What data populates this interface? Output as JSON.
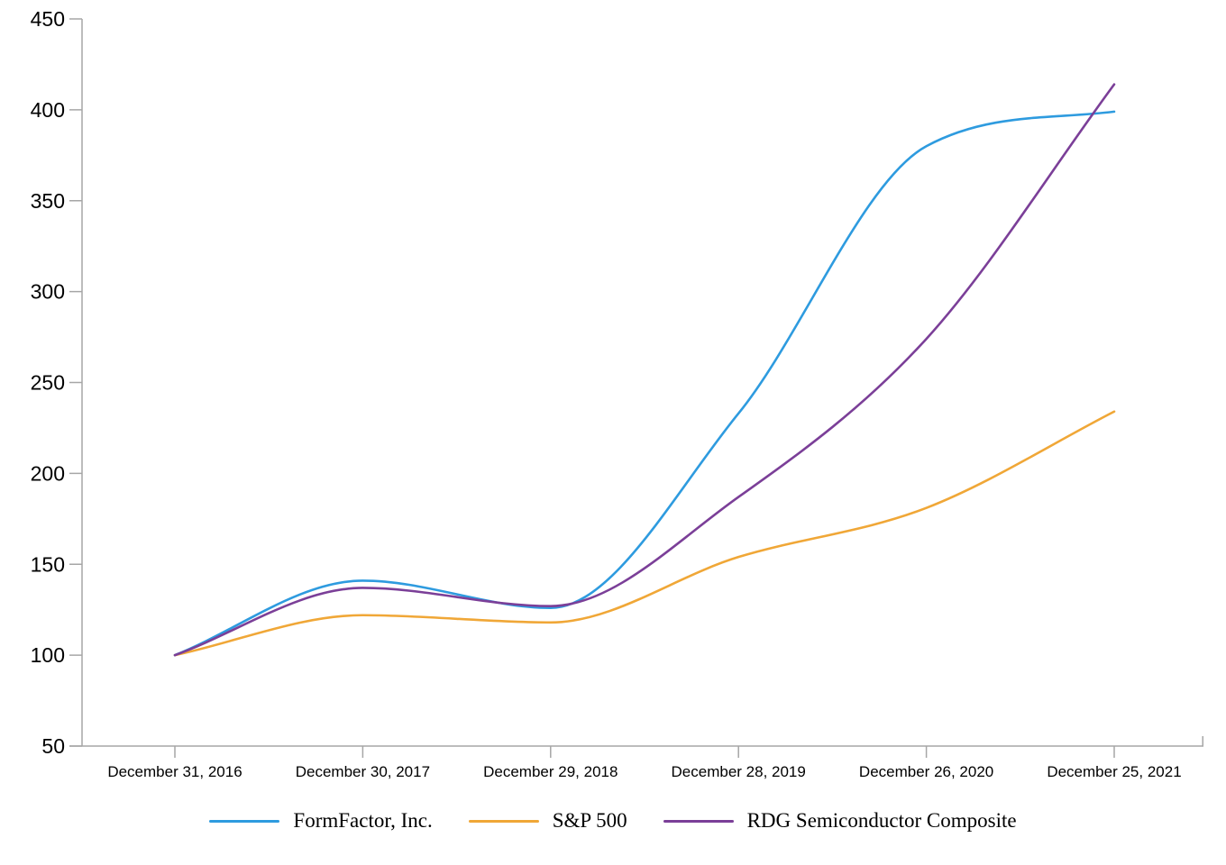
{
  "chart_data": {
    "type": "line",
    "title": "",
    "smoothed": true,
    "grid": false,
    "legend_position": "bottom",
    "axis_color": "#A6A6A6",
    "text_color": "#000000",
    "categories": [
      "December 31, 2016",
      "December 30, 2017",
      "December 29, 2018",
      "December 28, 2019",
      "December 26, 2020",
      "December 25, 2021"
    ],
    "series": [
      {
        "name": "FormFactor, Inc.",
        "color": "#2E9BDF",
        "values": [
          100,
          141,
          126,
          233,
          380,
          399
        ]
      },
      {
        "name": "S&P 500",
        "color": "#F0A737",
        "values": [
          100,
          122,
          118,
          154,
          181,
          234
        ]
      },
      {
        "name": "RDG Semiconductor Composite",
        "color": "#7B3F98",
        "values": [
          100,
          137,
          127,
          187,
          274,
          414
        ]
      }
    ],
    "ylim": [
      50,
      450
    ],
    "y_ticks": [
      450,
      400,
      350,
      300,
      250,
      200,
      150,
      100,
      50
    ],
    "xlabel": "",
    "ylabel": ""
  }
}
